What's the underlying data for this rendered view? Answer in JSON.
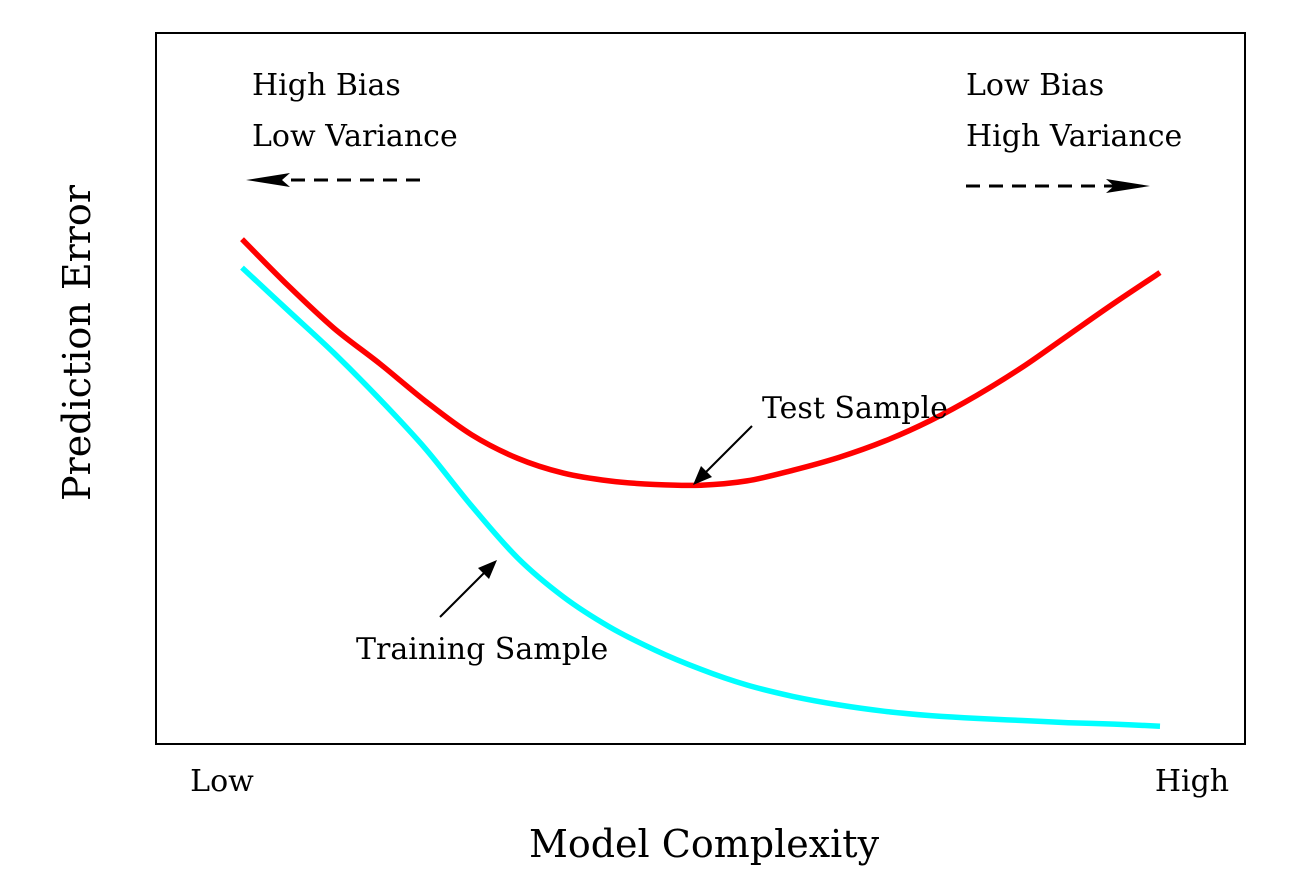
{
  "chart_data": {
    "type": "line",
    "xlabel": "Model Complexity",
    "ylabel": "Prediction Error",
    "x_ticks": [
      "Low",
      "High"
    ],
    "grid": false,
    "x_range": [
      0,
      1
    ],
    "y_range": [
      0,
      1
    ],
    "series": [
      {
        "name": "Test Sample",
        "color": "#ff0000",
        "points": [
          [
            0,
            0.71
          ],
          [
            0.05,
            0.645
          ],
          [
            0.1,
            0.585
          ],
          [
            0.15,
            0.535
          ],
          [
            0.2,
            0.482
          ],
          [
            0.25,
            0.435
          ],
          [
            0.3,
            0.402
          ],
          [
            0.35,
            0.381
          ],
          [
            0.4,
            0.37
          ],
          [
            0.45,
            0.365
          ],
          [
            0.5,
            0.364
          ],
          [
            0.55,
            0.37
          ],
          [
            0.6,
            0.385
          ],
          [
            0.65,
            0.403
          ],
          [
            0.7,
            0.426
          ],
          [
            0.75,
            0.455
          ],
          [
            0.8,
            0.49
          ],
          [
            0.85,
            0.53
          ],
          [
            0.9,
            0.575
          ],
          [
            0.95,
            0.62
          ],
          [
            1.0,
            0.663
          ]
        ]
      },
      {
        "name": "Training Sample",
        "color": "#00ffff",
        "points": [
          [
            0,
            0.67
          ],
          [
            0.05,
            0.61
          ],
          [
            0.1,
            0.55
          ],
          [
            0.15,
            0.485
          ],
          [
            0.2,
            0.415
          ],
          [
            0.25,
            0.335
          ],
          [
            0.3,
            0.262
          ],
          [
            0.35,
            0.207
          ],
          [
            0.4,
            0.165
          ],
          [
            0.45,
            0.132
          ],
          [
            0.5,
            0.105
          ],
          [
            0.55,
            0.083
          ],
          [
            0.6,
            0.067
          ],
          [
            0.65,
            0.055
          ],
          [
            0.7,
            0.046
          ],
          [
            0.75,
            0.04
          ],
          [
            0.8,
            0.036
          ],
          [
            0.85,
            0.033
          ],
          [
            0.9,
            0.03
          ],
          [
            0.95,
            0.028
          ],
          [
            1.0,
            0.025
          ]
        ]
      }
    ],
    "annotations": {
      "left_line1": "High Bias",
      "left_line2": "Low Variance",
      "right_line1": "Low Bias",
      "right_line2": "High Variance",
      "test_label": "Test Sample",
      "train_label": "Training Sample"
    }
  }
}
